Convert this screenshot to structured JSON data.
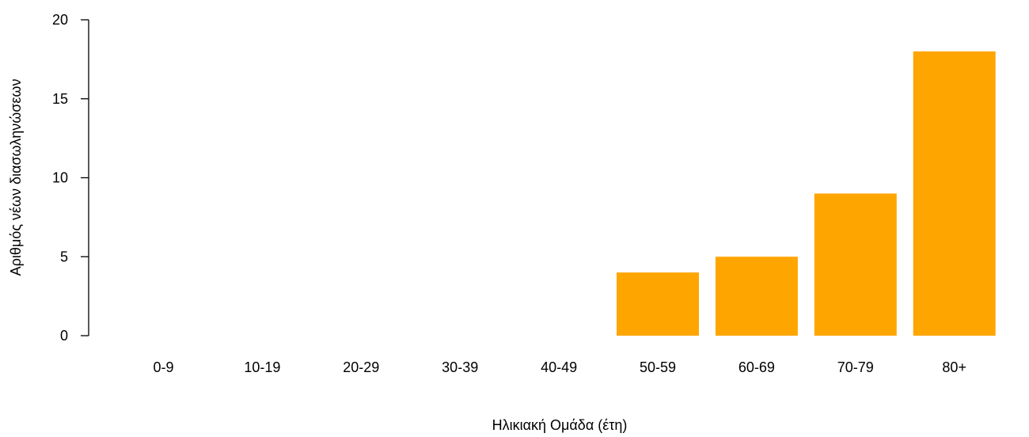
{
  "chart_data": {
    "type": "bar",
    "categories": [
      "0-9",
      "10-19",
      "20-29",
      "30-39",
      "40-49",
      "50-59",
      "60-69",
      "70-79",
      "80+"
    ],
    "values": [
      0,
      0,
      0,
      0,
      0,
      4,
      5,
      9,
      18
    ],
    "title": "",
    "xlabel": "Ηλικιακή Ομάδα (έτη)",
    "ylabel": "Αριθμός νέων διασωληνώσεων",
    "ylim": [
      0,
      20
    ],
    "yticks": [
      0,
      5,
      10,
      15,
      20
    ],
    "bar_color": "#FFA500",
    "grid": false,
    "legend": "none"
  }
}
